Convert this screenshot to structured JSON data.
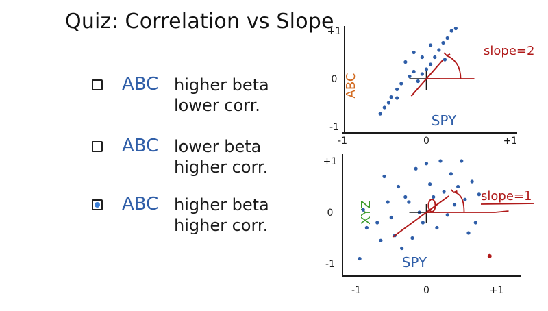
{
  "title": "Quiz: Correlation vs Slope",
  "options": [
    {
      "abc": "ABC",
      "line1": "higher beta",
      "line2": "lower corr.",
      "checked": false
    },
    {
      "abc": "ABC",
      "line1": "lower beta",
      "line2": "higher corr.",
      "checked": false
    },
    {
      "abc": "ABC",
      "line1": "higher beta",
      "line2": "higher corr.",
      "checked": true
    }
  ],
  "colors": {
    "ink": "#1a1a1a",
    "blue": "#2f5ea8",
    "red": "#b01a1a",
    "orange": "#d2691e",
    "green": "#3a9b2a",
    "checkbox_fill": "#3c7fd6"
  },
  "chart_data": [
    {
      "type": "scatter",
      "xlabel": "SPY",
      "ylabel": "ABC",
      "x_ticks": [
        "-1",
        "0",
        "+1"
      ],
      "y_ticks": [
        "+1",
        "0",
        "-1"
      ],
      "xlim": [
        -1,
        1
      ],
      "ylim": [
        -1,
        1
      ],
      "annotation": "slope=2",
      "fit_line": {
        "slope": 2
      },
      "points": [
        [
          -0.55,
          -0.73
        ],
        [
          -0.5,
          -0.6
        ],
        [
          -0.45,
          -0.5
        ],
        [
          -0.42,
          -0.38
        ],
        [
          -0.35,
          -0.22
        ],
        [
          -0.3,
          -0.1
        ],
        [
          -0.2,
          0.05
        ],
        [
          -0.15,
          0.15
        ],
        [
          -0.1,
          -0.05
        ],
        [
          -0.05,
          0.1
        ],
        [
          0,
          0.2
        ],
        [
          0.05,
          0.3
        ],
        [
          0.1,
          0.45
        ],
        [
          0.15,
          0.6
        ],
        [
          0.2,
          0.75
        ],
        [
          0.25,
          0.85
        ],
        [
          0.3,
          1.0
        ],
        [
          0.35,
          1.05
        ],
        [
          -0.25,
          0.35
        ],
        [
          -0.15,
          0.55
        ],
        [
          0.05,
          0.7
        ],
        [
          -0.35,
          -0.4
        ],
        [
          0.22,
          0.4
        ],
        [
          -0.05,
          0.45
        ]
      ]
    },
    {
      "type": "scatter",
      "xlabel": "SPY",
      "ylabel": "XYZ",
      "x_ticks": [
        "-1",
        "0",
        "+1"
      ],
      "y_ticks": [
        "+1",
        "0",
        "-1"
      ],
      "xlim": [
        -1,
        1
      ],
      "ylim": [
        -1,
        1
      ],
      "annotation": "slope=1",
      "fit_line": {
        "slope": 1
      },
      "points": [
        [
          -0.95,
          -0.9
        ],
        [
          -0.9,
          0.05
        ],
        [
          -0.85,
          -0.3
        ],
        [
          -0.7,
          -0.2
        ],
        [
          -0.6,
          0.7
        ],
        [
          -0.55,
          0.2
        ],
        [
          -0.5,
          -0.1
        ],
        [
          -0.45,
          -0.45
        ],
        [
          -0.4,
          0.5
        ],
        [
          -0.35,
          -0.7
        ],
        [
          -0.3,
          0.3
        ],
        [
          -0.25,
          0.2
        ],
        [
          -0.2,
          -0.5
        ],
        [
          -0.15,
          0.85
        ],
        [
          -0.1,
          0.0
        ],
        [
          -0.05,
          -0.2
        ],
        [
          0.0,
          0.95
        ],
        [
          0.05,
          0.55
        ],
        [
          0.1,
          0.3
        ],
        [
          0.15,
          -0.3
        ],
        [
          0.2,
          1.0
        ],
        [
          0.25,
          0.4
        ],
        [
          0.3,
          -0.05
        ],
        [
          0.35,
          0.75
        ],
        [
          0.4,
          0.15
        ],
        [
          0.45,
          0.5
        ],
        [
          0.5,
          1.0
        ],
        [
          0.55,
          0.25
        ],
        [
          0.6,
          -0.4
        ],
        [
          0.65,
          0.6
        ],
        [
          0.7,
          -0.2
        ],
        [
          -0.65,
          -0.55
        ],
        [
          0.75,
          0.35
        ]
      ],
      "highlight_point": [
        0.9,
        -0.85
      ]
    }
  ]
}
